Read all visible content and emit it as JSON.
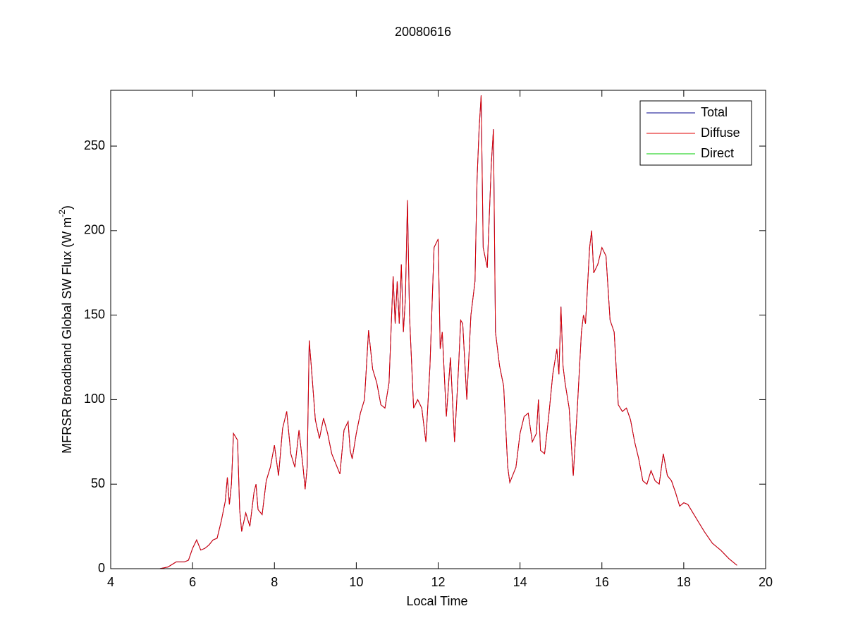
{
  "chart_data": {
    "type": "line",
    "title": "20080616",
    "xlabel": "Local Time",
    "ylabel": [
      "MFRSR Broadband Global SW Flux (W m",
      "-2",
      ")"
    ],
    "xlim": [
      4,
      20
    ],
    "xticks": [
      4,
      6,
      8,
      10,
      12,
      14,
      16,
      18,
      20
    ],
    "ylim": [
      0,
      283
    ],
    "yticks": [
      0,
      50,
      100,
      150,
      200,
      250
    ],
    "legend": "northeast",
    "x": [
      5.2,
      5.4,
      5.6,
      5.8,
      5.9,
      6.0,
      6.1,
      6.2,
      6.3,
      6.4,
      6.5,
      6.6,
      6.7,
      6.8,
      6.85,
      6.9,
      6.95,
      7.0,
      7.1,
      7.15,
      7.2,
      7.3,
      7.4,
      7.5,
      7.55,
      7.6,
      7.7,
      7.8,
      7.9,
      8.0,
      8.1,
      8.2,
      8.3,
      8.4,
      8.5,
      8.6,
      8.7,
      8.75,
      8.8,
      8.85,
      8.9,
      9.0,
      9.1,
      9.2,
      9.3,
      9.4,
      9.5,
      9.6,
      9.7,
      9.8,
      9.85,
      9.9,
      10.0,
      10.1,
      10.2,
      10.3,
      10.4,
      10.5,
      10.6,
      10.7,
      10.8,
      10.9,
      10.95,
      11.0,
      11.05,
      11.1,
      11.15,
      11.2,
      11.25,
      11.3,
      11.4,
      11.5,
      11.6,
      11.7,
      11.8,
      11.9,
      12.0,
      12.05,
      12.1,
      12.2,
      12.3,
      12.4,
      12.5,
      12.55,
      12.6,
      12.7,
      12.8,
      12.9,
      12.95,
      13.0,
      13.05,
      13.1,
      13.2,
      13.3,
      13.35,
      13.4,
      13.5,
      13.6,
      13.7,
      13.75,
      13.9,
      14.0,
      14.1,
      14.2,
      14.3,
      14.4,
      14.45,
      14.5,
      14.6,
      14.7,
      14.8,
      14.9,
      14.95,
      15.0,
      15.05,
      15.1,
      15.2,
      15.3,
      15.4,
      15.5,
      15.55,
      15.6,
      15.7,
      15.75,
      15.8,
      15.9,
      16.0,
      16.1,
      16.2,
      16.3,
      16.4,
      16.5,
      16.6,
      16.7,
      16.8,
      16.9,
      17.0,
      17.1,
      17.2,
      17.3,
      17.4,
      17.5,
      17.6,
      17.7,
      17.8,
      17.9,
      18.0,
      18.1,
      18.3,
      18.5,
      18.7,
      18.9,
      19.1,
      19.3
    ],
    "series": [
      {
        "name": "Total",
        "color": "#00008b",
        "values": [
          0,
          1,
          4,
          4,
          5,
          12,
          17,
          11,
          12,
          14,
          17,
          18,
          28,
          40,
          54,
          38,
          50,
          80,
          76,
          35,
          22,
          33,
          25,
          45,
          50,
          35,
          32,
          52,
          60,
          73,
          55,
          83,
          93,
          68,
          60,
          82,
          60,
          47,
          60,
          135,
          120,
          88,
          77,
          89,
          80,
          68,
          62,
          56,
          82,
          87,
          70,
          65,
          80,
          92,
          100,
          141,
          118,
          110,
          97,
          95,
          110,
          173,
          145,
          170,
          145,
          180,
          140,
          160,
          218,
          150,
          95,
          100,
          95,
          75,
          120,
          190,
          195,
          130,
          140,
          90,
          125,
          75,
          120,
          147,
          145,
          100,
          150,
          170,
          230,
          260,
          280,
          190,
          178,
          240,
          260,
          140,
          120,
          108,
          60,
          51,
          60,
          80,
          90,
          92,
          75,
          80,
          100,
          70,
          68,
          90,
          115,
          130,
          115,
          155,
          120,
          110,
          95,
          55,
          95,
          140,
          150,
          145,
          190,
          200,
          175,
          180,
          190,
          185,
          147,
          140,
          97,
          93,
          95,
          88,
          75,
          65,
          52,
          50,
          58,
          52,
          50,
          68,
          55,
          52,
          45,
          37,
          39,
          38,
          30,
          22,
          15,
          11,
          6,
          2
        ]
      },
      {
        "name": "Diffuse",
        "color": "#e00000",
        "values": [
          0,
          1,
          4,
          4,
          5,
          12,
          17,
          11,
          12,
          14,
          17,
          18,
          28,
          40,
          54,
          38,
          50,
          80,
          76,
          35,
          22,
          33,
          25,
          45,
          50,
          35,
          32,
          52,
          60,
          73,
          55,
          83,
          93,
          68,
          60,
          82,
          60,
          47,
          60,
          135,
          120,
          88,
          77,
          89,
          80,
          68,
          62,
          56,
          82,
          87,
          70,
          65,
          80,
          92,
          100,
          141,
          118,
          110,
          97,
          95,
          110,
          173,
          145,
          170,
          145,
          180,
          140,
          160,
          218,
          150,
          95,
          100,
          95,
          75,
          120,
          190,
          195,
          130,
          140,
          90,
          125,
          75,
          120,
          147,
          145,
          100,
          150,
          170,
          230,
          260,
          280,
          190,
          178,
          240,
          260,
          140,
          120,
          108,
          60,
          51,
          60,
          80,
          90,
          92,
          75,
          80,
          100,
          70,
          68,
          90,
          115,
          130,
          115,
          155,
          120,
          110,
          95,
          55,
          95,
          140,
          150,
          145,
          190,
          200,
          175,
          180,
          190,
          185,
          147,
          140,
          97,
          93,
          95,
          88,
          75,
          65,
          52,
          50,
          58,
          52,
          50,
          68,
          55,
          52,
          45,
          37,
          39,
          38,
          30,
          22,
          15,
          11,
          6,
          2
        ]
      },
      {
        "name": "Direct",
        "color": "#00cc00",
        "values": [
          0,
          0,
          0,
          0,
          0,
          0,
          0,
          0,
          0,
          0,
          0,
          0,
          0,
          0,
          0,
          0,
          0,
          0,
          0,
          0,
          0,
          0,
          0,
          0,
          0,
          0,
          0,
          0,
          0,
          0,
          0,
          0,
          0,
          0,
          0,
          0,
          0,
          0,
          0,
          0,
          0,
          0,
          0,
          0,
          0,
          0,
          0,
          0,
          0,
          0,
          0,
          0,
          0,
          0,
          0,
          0,
          0,
          0,
          0,
          0,
          0,
          0,
          0,
          0,
          0,
          0,
          0,
          0,
          0,
          0,
          0,
          0,
          0,
          0,
          0,
          0,
          0,
          0,
          0,
          0,
          0,
          0,
          0,
          0,
          0,
          0,
          0,
          0,
          0,
          0,
          0,
          0,
          0,
          0,
          0,
          0,
          0,
          0,
          0,
          0,
          0,
          0,
          0,
          0,
          0,
          0,
          0,
          0,
          0,
          0,
          0,
          0,
          0,
          0,
          0,
          0,
          0,
          0,
          0,
          0,
          0,
          0,
          0,
          0,
          0,
          0,
          0,
          0,
          0,
          0,
          0,
          0,
          0,
          0,
          0,
          0,
          0,
          0,
          0,
          0,
          0,
          0,
          0,
          0,
          0,
          0,
          0,
          0,
          0,
          0,
          0,
          0,
          0,
          0
        ]
      }
    ]
  }
}
